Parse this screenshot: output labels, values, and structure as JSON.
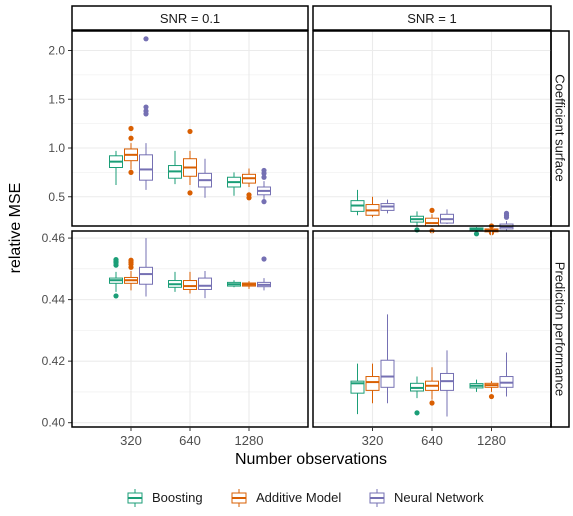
{
  "chart_data": {
    "type": "boxplot",
    "ylabel": "relative MSE",
    "xlabel": "Number observations",
    "categories": [
      "320",
      "640",
      "1280"
    ],
    "columns": [
      "SNR = 0.1",
      "SNR = 1"
    ],
    "rows": [
      "Coefficient surface",
      "Prediction performance"
    ],
    "legend": {
      "position": "bottom",
      "items": [
        {
          "name": "Boosting",
          "color": "#1b9e77"
        },
        {
          "name": "Additive Model",
          "color": "#d95f02"
        },
        {
          "name": "Neural Network",
          "color": "#7570b3"
        }
      ]
    },
    "row_axes": [
      {
        "ylim": [
          0.2,
          2.2
        ],
        "ticks": [
          0.5,
          1.0,
          1.5,
          2.0
        ],
        "tick_labels": [
          "0.5",
          "1.0",
          "1.5",
          "2.0"
        ]
      },
      {
        "ylim": [
          0.3986,
          0.4623
        ],
        "ticks": [
          0.4,
          0.42,
          0.44,
          0.46
        ],
        "tick_labels": [
          "0.40",
          "0.42",
          "0.44",
          "0.46"
        ]
      }
    ],
    "panels": [
      {
        "row": 0,
        "col": 0,
        "groups": [
          [
            {
              "min": 0.62,
              "q1": 0.8,
              "median": 0.86,
              "q3": 0.92,
              "max": 0.97,
              "outliers": []
            },
            {
              "min": 0.78,
              "q1": 0.87,
              "median": 0.93,
              "q3": 0.99,
              "max": 1.05,
              "outliers": [
                1.1,
                1.2,
                0.75
              ]
            },
            {
              "min": 0.57,
              "q1": 0.67,
              "median": 0.78,
              "q3": 0.93,
              "max": 1.05,
              "outliers": [
                1.35,
                1.38,
                1.42,
                2.12
              ]
            }
          ],
          [
            {
              "min": 0.63,
              "q1": 0.69,
              "median": 0.76,
              "q3": 0.82,
              "max": 0.97,
              "outliers": []
            },
            {
              "min": 0.62,
              "q1": 0.71,
              "median": 0.8,
              "q3": 0.89,
              "max": 0.97,
              "outliers": [
                1.17,
                0.54
              ]
            },
            {
              "min": 0.49,
              "q1": 0.6,
              "median": 0.67,
              "q3": 0.74,
              "max": 0.89,
              "outliers": []
            }
          ],
          [
            {
              "min": 0.51,
              "q1": 0.6,
              "median": 0.65,
              "q3": 0.7,
              "max": 0.75,
              "outliers": []
            },
            {
              "min": 0.6,
              "q1": 0.64,
              "median": 0.69,
              "q3": 0.73,
              "max": 0.79,
              "outliers": [
                0.49,
                0.52
              ]
            },
            {
              "min": 0.47,
              "q1": 0.52,
              "median": 0.56,
              "q3": 0.6,
              "max": 0.66,
              "outliers": [
                0.7,
                0.74,
                0.77,
                0.45
              ]
            }
          ]
        ]
      },
      {
        "row": 0,
        "col": 1,
        "groups": [
          [
            {
              "min": 0.31,
              "q1": 0.35,
              "median": 0.41,
              "q3": 0.46,
              "max": 0.57,
              "outliers": []
            },
            {
              "min": 0.29,
              "q1": 0.31,
              "median": 0.36,
              "q3": 0.42,
              "max": 0.5,
              "outliers": []
            },
            {
              "min": 0.33,
              "q1": 0.36,
              "median": 0.4,
              "q3": 0.43,
              "max": 0.47,
              "outliers": []
            }
          ],
          [
            {
              "min": 0.2,
              "q1": 0.24,
              "median": 0.27,
              "q3": 0.3,
              "max": 0.35,
              "outliers": [
                0.16
              ]
            },
            {
              "min": 0.19,
              "q1": 0.2,
              "median": 0.23,
              "q3": 0.28,
              "max": 0.32,
              "outliers": [
                0.36,
                0.15
              ]
            },
            {
              "min": 0.22,
              "q1": 0.23,
              "median": 0.27,
              "q3": 0.32,
              "max": 0.37,
              "outliers": []
            }
          ],
          [
            {
              "min": 0.15,
              "q1": 0.16,
              "median": 0.17,
              "q3": 0.18,
              "max": 0.19,
              "outliers": [
                0.12
              ]
            },
            {
              "min": 0.13,
              "q1": 0.14,
              "median": 0.16,
              "q3": 0.17,
              "max": 0.21,
              "outliers": [
                0.13,
                0.2
              ]
            },
            {
              "min": 0.15,
              "q1": 0.17,
              "median": 0.19,
              "q3": 0.22,
              "max": 0.25,
              "outliers": [
                0.29,
                0.31,
                0.33
              ]
            }
          ]
        ]
      },
      {
        "row": 1,
        "col": 0,
        "groups": [
          [
            {
              "min": 0.4425,
              "q1": 0.4453,
              "median": 0.4463,
              "q3": 0.447,
              "max": 0.449,
              "outliers": [
                0.4412,
                0.4512,
                0.452,
                0.4525,
                0.453
              ]
            },
            {
              "min": 0.443,
              "q1": 0.4453,
              "median": 0.4463,
              "q3": 0.4472,
              "max": 0.4493,
              "outliers": [
                0.4505,
                0.4515,
                0.4522,
                0.4528
              ]
            },
            {
              "min": 0.441,
              "q1": 0.445,
              "median": 0.4483,
              "q3": 0.4505,
              "max": 0.46,
              "outliers": []
            }
          ],
          [
            {
              "min": 0.4425,
              "q1": 0.444,
              "median": 0.445,
              "q3": 0.4462,
              "max": 0.449,
              "outliers": []
            },
            {
              "min": 0.442,
              "q1": 0.4433,
              "median": 0.4444,
              "q3": 0.4462,
              "max": 0.449,
              "outliers": []
            },
            {
              "min": 0.4405,
              "q1": 0.4433,
              "median": 0.4445,
              "q3": 0.447,
              "max": 0.4493,
              "outliers": []
            }
          ],
          [
            {
              "min": 0.444,
              "q1": 0.4444,
              "median": 0.445,
              "q3": 0.4456,
              "max": 0.4463,
              "outliers": []
            },
            {
              "min": 0.4435,
              "q1": 0.4444,
              "median": 0.4449,
              "q3": 0.4454,
              "max": 0.446,
              "outliers": []
            },
            {
              "min": 0.443,
              "q1": 0.4442,
              "median": 0.4448,
              "q3": 0.4456,
              "max": 0.447,
              "outliers": [
                0.4532
              ]
            }
          ]
        ]
      },
      {
        "row": 1,
        "col": 1,
        "groups": [
          [
            {
              "min": 0.4028,
              "q1": 0.4096,
              "median": 0.4128,
              "q3": 0.4135,
              "max": 0.4192,
              "outliers": []
            },
            {
              "min": 0.4063,
              "q1": 0.4105,
              "median": 0.4132,
              "q3": 0.415,
              "max": 0.4192,
              "outliers": []
            },
            {
              "min": 0.4063,
              "q1": 0.4115,
              "median": 0.415,
              "q3": 0.4203,
              "max": 0.4352,
              "outliers": []
            }
          ],
          [
            {
              "min": 0.408,
              "q1": 0.4103,
              "median": 0.4113,
              "q3": 0.4128,
              "max": 0.415,
              "outliers": [
                0.4032
              ]
            },
            {
              "min": 0.4075,
              "q1": 0.4105,
              "median": 0.412,
              "q3": 0.4135,
              "max": 0.418,
              "outliers": [
                0.4064
              ]
            },
            {
              "min": 0.402,
              "q1": 0.4105,
              "median": 0.4135,
              "q3": 0.416,
              "max": 0.4235,
              "outliers": []
            }
          ],
          [
            {
              "min": 0.41,
              "q1": 0.4113,
              "median": 0.412,
              "q3": 0.4127,
              "max": 0.414,
              "outliers": []
            },
            {
              "min": 0.41,
              "q1": 0.4115,
              "median": 0.4122,
              "q3": 0.4128,
              "max": 0.4135,
              "outliers": [
                0.4085
              ]
            },
            {
              "min": 0.4085,
              "q1": 0.4115,
              "median": 0.413,
              "q3": 0.415,
              "max": 0.4228,
              "outliers": []
            }
          ]
        ]
      }
    ]
  }
}
